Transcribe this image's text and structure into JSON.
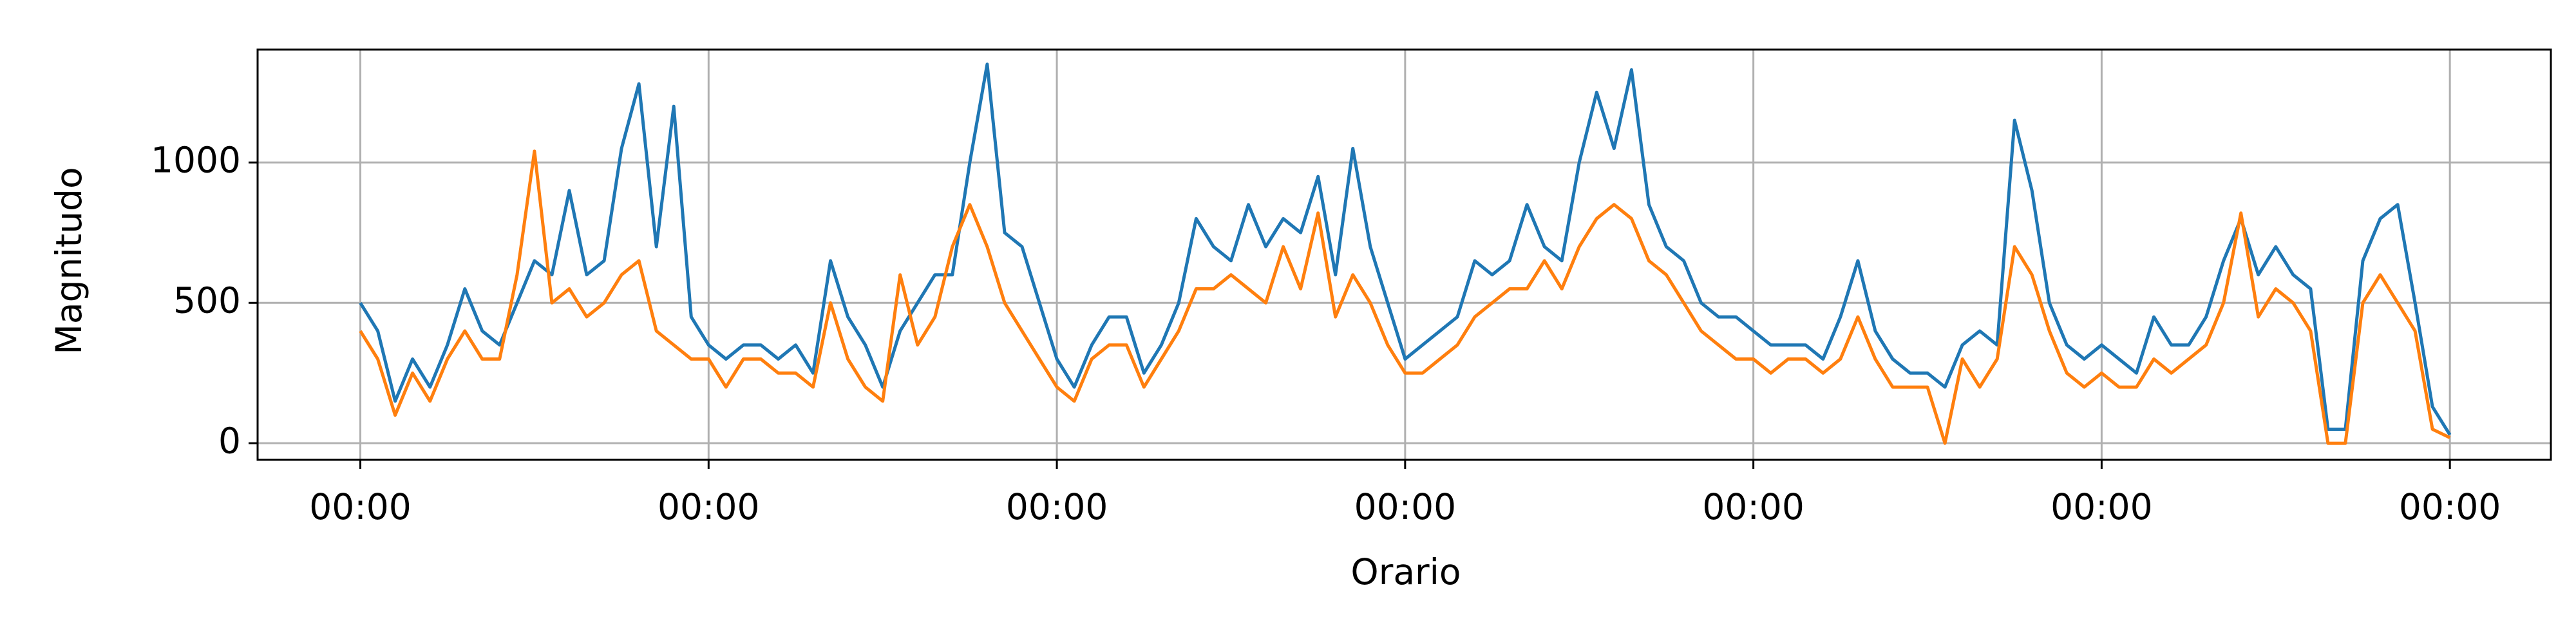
{
  "chart_data": {
    "type": "line",
    "xlabel": "Orario",
    "ylabel": "Magnitudo",
    "x": [
      0,
      0.05,
      0.1,
      0.15,
      0.2,
      0.25,
      0.3,
      0.35,
      0.4,
      0.45,
      0.5,
      0.55,
      0.6,
      0.65,
      0.7,
      0.75,
      0.8,
      0.85,
      0.9,
      0.95,
      1,
      1.05,
      1.1,
      1.15,
      1.2,
      1.25,
      1.3,
      1.35,
      1.4,
      1.45,
      1.5,
      1.55,
      1.6,
      1.65,
      1.7,
      1.75,
      1.8,
      1.85,
      1.9,
      1.95,
      2,
      2.05,
      2.1,
      2.15,
      2.2,
      2.25,
      2.3,
      2.35,
      2.4,
      2.45,
      2.5,
      2.55,
      2.6,
      2.65,
      2.7,
      2.75,
      2.8,
      2.85,
      2.9,
      2.95,
      3,
      3.05,
      3.1,
      3.15,
      3.2,
      3.25,
      3.3,
      3.35,
      3.4,
      3.45,
      3.5,
      3.55,
      3.6,
      3.65,
      3.7,
      3.75,
      3.8,
      3.85,
      3.9,
      3.95,
      4,
      4.05,
      4.1,
      4.15,
      4.2,
      4.25,
      4.3,
      4.35,
      4.4,
      4.45,
      4.5,
      4.55,
      4.6,
      4.65,
      4.7,
      4.75,
      4.8,
      4.85,
      4.9,
      4.95,
      5,
      5.05,
      5.1,
      5.15,
      5.2,
      5.25,
      5.3,
      5.35,
      5.4,
      5.45,
      5.5,
      5.55,
      5.6,
      5.65,
      5.7,
      5.75,
      5.8,
      5.85,
      5.9,
      5.95,
      6
    ],
    "series": [
      {
        "color": "#1f77b4",
        "values": [
          500,
          400,
          150,
          300,
          200,
          350,
          550,
          400,
          350,
          500,
          650,
          600,
          900,
          600,
          650,
          1050,
          1280,
          700,
          1200,
          450,
          350,
          300,
          350,
          350,
          300,
          350,
          250,
          650,
          450,
          350,
          200,
          400,
          500,
          600,
          600,
          1000,
          1350,
          750,
          700,
          500,
          300,
          200,
          350,
          450,
          450,
          250,
          350,
          500,
          800,
          700,
          650,
          850,
          700,
          800,
          750,
          950,
          600,
          1050,
          700,
          500,
          300,
          350,
          400,
          450,
          650,
          600,
          650,
          850,
          700,
          650,
          1000,
          1250,
          1050,
          1330,
          850,
          700,
          650,
          500,
          450,
          450,
          400,
          350,
          350,
          350,
          300,
          450,
          650,
          400,
          300,
          250,
          250,
          200,
          350,
          400,
          350,
          1150,
          900,
          500,
          350,
          300,
          350,
          300,
          250,
          450,
          350,
          350,
          450,
          650,
          800,
          600,
          700,
          600,
          550,
          50,
          50,
          650,
          800,
          850,
          500,
          130,
          30
        ]
      },
      {
        "color": "#ff7f0e",
        "values": [
          400,
          300,
          100,
          250,
          150,
          300,
          400,
          300,
          300,
          600,
          1040,
          500,
          550,
          450,
          500,
          600,
          650,
          400,
          350,
          300,
          300,
          200,
          300,
          300,
          250,
          250,
          200,
          500,
          300,
          200,
          150,
          600,
          350,
          450,
          700,
          850,
          700,
          500,
          400,
          300,
          200,
          150,
          300,
          350,
          350,
          200,
          300,
          400,
          550,
          550,
          600,
          550,
          500,
          700,
          550,
          820,
          450,
          600,
          500,
          350,
          250,
          250,
          300,
          350,
          450,
          500,
          550,
          550,
          650,
          550,
          700,
          800,
          850,
          800,
          650,
          600,
          500,
          400,
          350,
          300,
          300,
          250,
          300,
          300,
          250,
          300,
          450,
          300,
          200,
          200,
          200,
          0,
          300,
          200,
          300,
          700,
          600,
          400,
          250,
          200,
          250,
          200,
          200,
          300,
          250,
          300,
          350,
          500,
          820,
          450,
          550,
          500,
          400,
          0,
          0,
          500,
          600,
          500,
          400,
          50,
          20
        ]
      }
    ],
    "xlim": [
      -0.295,
      6.29
    ],
    "xticks": [
      {
        "value": 0,
        "label": "00:00"
      },
      {
        "value": 1,
        "label": "00:00"
      },
      {
        "value": 2,
        "label": "00:00"
      },
      {
        "value": 3,
        "label": "00:00"
      },
      {
        "value": 4,
        "label": "00:00"
      },
      {
        "value": 5,
        "label": "00:00"
      },
      {
        "value": 6,
        "label": "00:00"
      }
    ],
    "ylim": [
      -59,
      1402
    ],
    "yticks": [
      0,
      500,
      1000
    ],
    "grid": true
  }
}
